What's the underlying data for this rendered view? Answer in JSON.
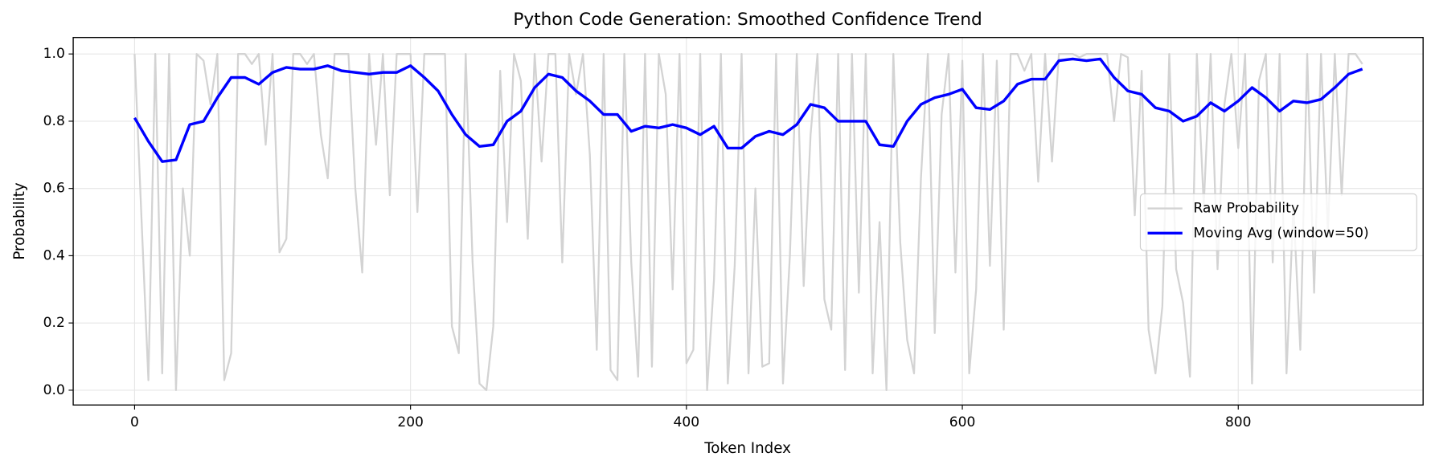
{
  "chart_data": {
    "type": "line",
    "title": "Python Code Generation: Smoothed Confidence Trend",
    "xlabel": "Token Index",
    "ylabel": "Probability",
    "xlim": [
      -44.5,
      934
    ],
    "ylim": [
      -0.044,
      1.049
    ],
    "xticks": [
      0,
      200,
      400,
      600,
      800
    ],
    "yticks": [
      {
        "value": 0,
        "label": "0.0"
      },
      0.2,
      0.4,
      0.6,
      0.8,
      {
        "value": 1,
        "label": "1.0"
      }
    ],
    "grid": true,
    "legend": "center right",
    "series": [
      {
        "name": "Raw Probability",
        "color": "#d3d3d3",
        "width": 2,
        "x": [
          0,
          5,
          10,
          15,
          20,
          25,
          30,
          35,
          40,
          45,
          50,
          55,
          60,
          65,
          70,
          75,
          80,
          85,
          90,
          95,
          100,
          105,
          110,
          115,
          120,
          125,
          130,
          135,
          140,
          145,
          150,
          155,
          160,
          165,
          170,
          175,
          180,
          185,
          190,
          195,
          200,
          205,
          210,
          215,
          220,
          225,
          230,
          235,
          240,
          245,
          250,
          255,
          260,
          265,
          270,
          275,
          280,
          285,
          290,
          295,
          300,
          305,
          310,
          315,
          320,
          325,
          330,
          335,
          340,
          345,
          350,
          355,
          360,
          365,
          370,
          375,
          380,
          385,
          390,
          395,
          400,
          405,
          410,
          415,
          420,
          425,
          430,
          435,
          440,
          445,
          450,
          455,
          460,
          465,
          470,
          475,
          480,
          485,
          490,
          495,
          500,
          505,
          510,
          515,
          520,
          525,
          530,
          535,
          540,
          545,
          550,
          555,
          560,
          565,
          570,
          575,
          580,
          585,
          590,
          595,
          600,
          605,
          610,
          615,
          620,
          625,
          630,
          635,
          640,
          645,
          650,
          655,
          660,
          665,
          670,
          675,
          680,
          685,
          690,
          695,
          700,
          705,
          710,
          715,
          720,
          725,
          730,
          735,
          740,
          745,
          750,
          755,
          760,
          765,
          770,
          775,
          780,
          785,
          790,
          795,
          800,
          805,
          810,
          815,
          820,
          825,
          830,
          835,
          840,
          845,
          850,
          855,
          860,
          865,
          870,
          875,
          880,
          885,
          890
        ],
        "values": [
          1.0,
          0.51,
          0.03,
          1.0,
          0.05,
          1.0,
          0.0,
          0.6,
          0.4,
          1.0,
          0.98,
          0.85,
          1.0,
          0.03,
          0.11,
          1.0,
          1.0,
          0.97,
          1.0,
          0.73,
          1.0,
          0.41,
          0.45,
          1.0,
          1.0,
          0.97,
          1.0,
          0.76,
          0.63,
          1.0,
          1.0,
          1.0,
          0.6,
          0.35,
          1.0,
          0.73,
          1.0,
          0.58,
          1.0,
          1.0,
          1.0,
          0.53,
          1.0,
          1.0,
          1.0,
          1.0,
          0.19,
          0.11,
          1.0,
          0.38,
          0.02,
          0.0,
          0.19,
          0.95,
          0.5,
          1.0,
          0.92,
          0.45,
          1.0,
          0.68,
          1.0,
          1.0,
          0.38,
          1.0,
          0.88,
          1.0,
          0.7,
          0.12,
          1.0,
          0.06,
          0.03,
          1.0,
          0.38,
          0.04,
          1.0,
          0.07,
          1.0,
          0.88,
          0.3,
          1.0,
          0.08,
          0.12,
          1.0,
          0.0,
          0.33,
          1.0,
          0.02,
          0.37,
          1.0,
          0.05,
          0.6,
          0.07,
          0.08,
          1.0,
          0.02,
          0.4,
          1.0,
          0.31,
          0.76,
          1.0,
          0.27,
          0.18,
          1.0,
          0.06,
          1.0,
          0.29,
          1.0,
          0.05,
          0.5,
          0.0,
          1.0,
          0.44,
          0.15,
          0.05,
          0.63,
          1.0,
          0.17,
          0.82,
          1.0,
          0.35,
          0.98,
          0.05,
          0.3,
          1.0,
          0.37,
          0.98,
          0.18,
          1.0,
          1.0,
          0.95,
          1.0,
          0.62,
          1.0,
          0.68,
          1.0,
          1.0,
          1.0,
          0.99,
          1.0,
          1.0,
          1.0,
          1.0,
          0.8,
          1.0,
          0.99,
          0.52,
          0.95,
          0.18,
          0.05,
          0.25,
          1.0,
          0.36,
          0.26,
          0.04,
          1.0,
          0.55,
          1.0,
          0.36,
          0.85,
          1.0,
          0.72,
          1.0,
          0.02,
          0.92,
          1.0,
          0.38,
          1.0,
          0.05,
          0.55,
          0.12,
          1.0,
          0.29,
          1.0,
          0.47,
          1.0,
          0.58,
          1.0,
          1.0,
          0.97
        ]
      },
      {
        "name": "Moving Avg (window=50)",
        "color": "#0000ff",
        "width": 3,
        "x": [
          0,
          10,
          20,
          30,
          40,
          50,
          60,
          70,
          80,
          90,
          100,
          110,
          120,
          130,
          140,
          150,
          160,
          170,
          180,
          190,
          200,
          210,
          220,
          230,
          240,
          250,
          260,
          270,
          280,
          290,
          300,
          310,
          320,
          330,
          340,
          350,
          360,
          370,
          380,
          390,
          400,
          410,
          420,
          430,
          440,
          450,
          460,
          470,
          480,
          490,
          500,
          510,
          520,
          530,
          540,
          550,
          560,
          570,
          580,
          590,
          600,
          610,
          620,
          630,
          640,
          650,
          660,
          670,
          680,
          690,
          700,
          710,
          720,
          730,
          740,
          750,
          760,
          770,
          780,
          790,
          800,
          810,
          820,
          830,
          840,
          850,
          860,
          870,
          880,
          890
        ],
        "values": [
          0.81,
          0.74,
          0.68,
          0.685,
          0.79,
          0.8,
          0.87,
          0.93,
          0.93,
          0.91,
          0.945,
          0.96,
          0.955,
          0.955,
          0.965,
          0.95,
          0.945,
          0.94,
          0.945,
          0.945,
          0.965,
          0.93,
          0.89,
          0.82,
          0.76,
          0.725,
          0.73,
          0.8,
          0.83,
          0.9,
          0.94,
          0.93,
          0.89,
          0.86,
          0.82,
          0.82,
          0.77,
          0.785,
          0.78,
          0.79,
          0.78,
          0.76,
          0.785,
          0.72,
          0.72,
          0.755,
          0.77,
          0.76,
          0.79,
          0.85,
          0.84,
          0.8,
          0.8,
          0.8,
          0.73,
          0.725,
          0.8,
          0.85,
          0.87,
          0.88,
          0.895,
          0.84,
          0.835,
          0.86,
          0.91,
          0.925,
          0.925,
          0.98,
          0.985,
          0.98,
          0.985,
          0.93,
          0.89,
          0.88,
          0.84,
          0.83,
          0.8,
          0.815,
          0.855,
          0.83,
          0.86,
          0.9,
          0.87,
          0.83,
          0.86,
          0.855,
          0.865,
          0.9,
          0.94,
          0.955
        ]
      }
    ]
  }
}
